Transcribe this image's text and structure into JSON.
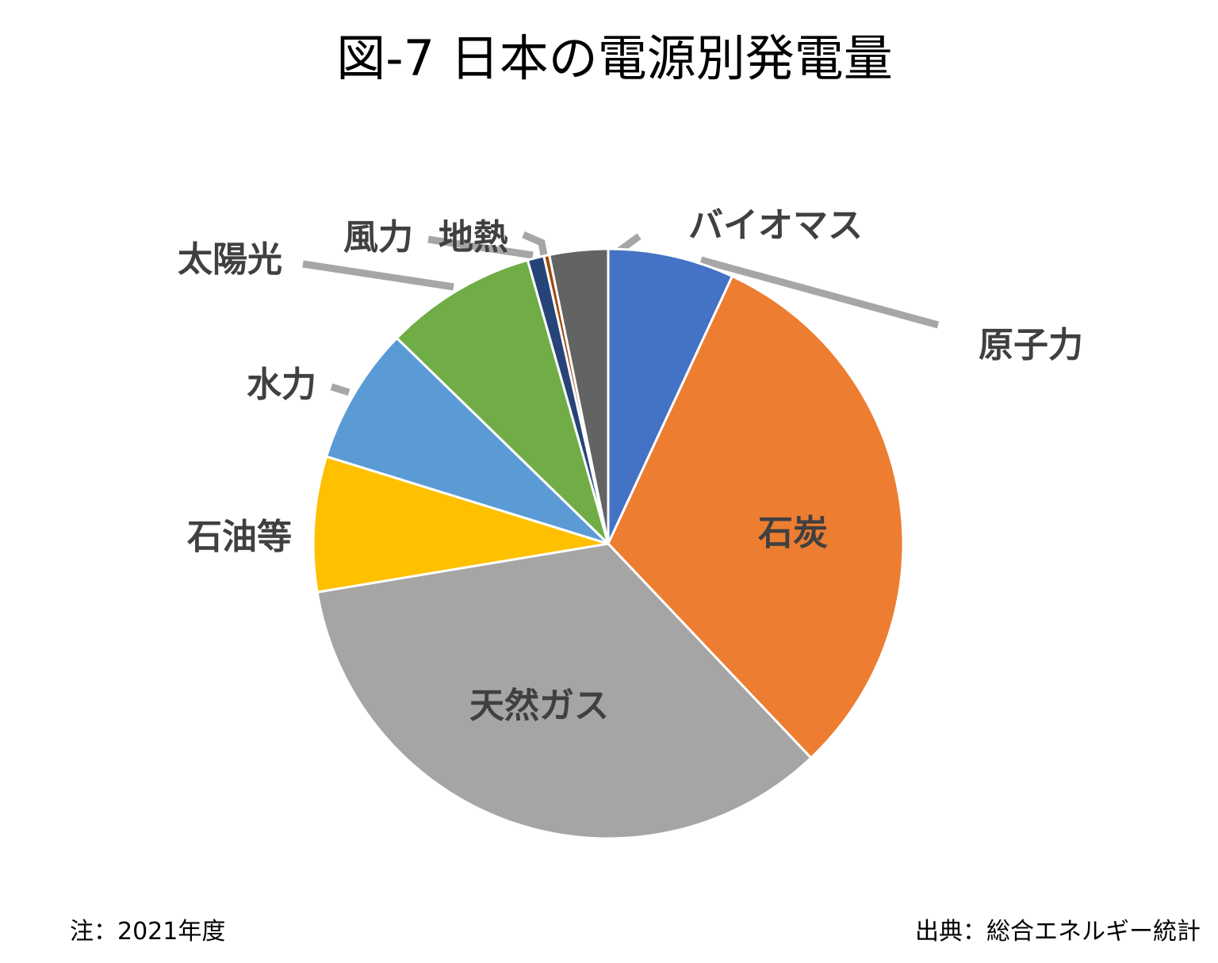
{
  "title": "図-7  日本の電源別発電量",
  "note": "注：2021年度",
  "source": "出典：総合エネルギー統計",
  "colors": {
    "background": "#ffffff",
    "slice_border": "#ffffff",
    "leader_line": "#a6a6a6",
    "label_text": "#404040"
  },
  "chart_data": {
    "type": "pie",
    "start": "12 o'clock",
    "direction": "clockwise",
    "legend": "none",
    "slices": [
      {
        "label": "原子力",
        "value": 6.9,
        "color": "#4472c4",
        "label_position": "outside"
      },
      {
        "label": "石炭",
        "value": 31.0,
        "color": "#ed7d31",
        "label_position": "inside"
      },
      {
        "label": "天然ガス",
        "value": 34.4,
        "color": "#a5a5a5",
        "label_position": "inside"
      },
      {
        "label": "石油等",
        "value": 7.4,
        "color": "#ffc000",
        "label_position": "outside"
      },
      {
        "label": "水力",
        "value": 7.5,
        "color": "#5b9bd5",
        "label_position": "outside"
      },
      {
        "label": "太陽光",
        "value": 8.3,
        "color": "#70ad47",
        "label_position": "outside"
      },
      {
        "label": "風力",
        "value": 0.9,
        "color": "#264478",
        "label_position": "outside"
      },
      {
        "label": "地熱",
        "value": 0.3,
        "color": "#9e480e",
        "label_position": "outside"
      },
      {
        "label": "バイオマス",
        "value": 3.2,
        "color": "#636363",
        "label_position": "outside"
      }
    ]
  }
}
